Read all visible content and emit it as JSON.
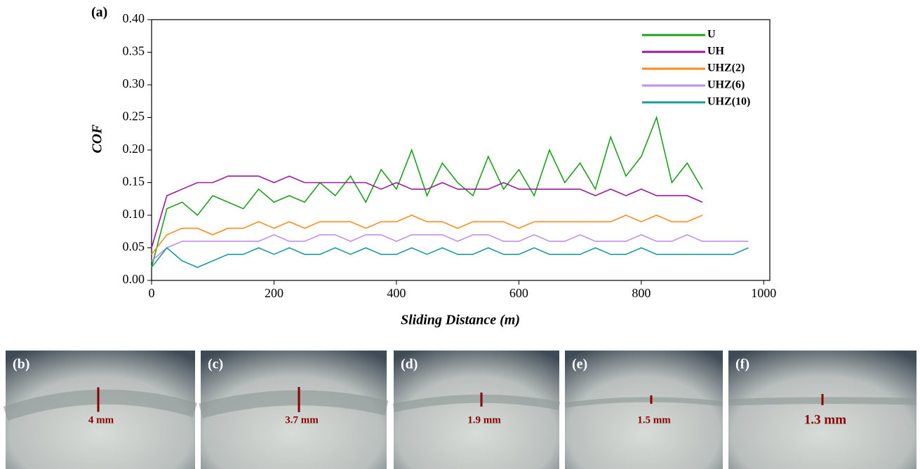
{
  "chart_data": {
    "type": "line",
    "annotation": "(a)",
    "x_label": "Sliding Distance (m)",
    "y_label": "COF",
    "x": [
      0,
      25,
      50,
      75,
      100,
      125,
      150,
      175,
      200,
      225,
      250,
      275,
      300,
      325,
      350,
      375,
      400,
      425,
      450,
      475,
      500,
      525,
      550,
      575,
      600,
      625,
      650,
      675,
      700,
      725,
      750,
      775,
      800,
      825,
      850,
      875,
      900,
      925,
      950,
      975
    ],
    "series": [
      {
        "name": "U",
        "color": "#1ca01c",
        "values": [
          0.02,
          0.11,
          0.12,
          0.1,
          0.13,
          0.12,
          0.11,
          0.14,
          0.12,
          0.13,
          0.12,
          0.15,
          0.13,
          0.16,
          0.12,
          0.17,
          0.14,
          0.2,
          0.13,
          0.18,
          0.15,
          0.13,
          0.19,
          0.14,
          0.17,
          0.13,
          0.2,
          0.15,
          0.18,
          0.14,
          0.22,
          0.16,
          0.19,
          0.25,
          0.15,
          0.18,
          0.14,
          null,
          null,
          null
        ]
      },
      {
        "name": "UH",
        "color": "#9b1a9b",
        "values": [
          0.05,
          0.13,
          0.14,
          0.15,
          0.15,
          0.16,
          0.16,
          0.16,
          0.15,
          0.16,
          0.15,
          0.15,
          0.15,
          0.15,
          0.15,
          0.14,
          0.15,
          0.14,
          0.14,
          0.15,
          0.14,
          0.14,
          0.14,
          0.15,
          0.14,
          0.14,
          0.14,
          0.14,
          0.14,
          0.13,
          0.14,
          0.13,
          0.14,
          0.13,
          0.13,
          0.13,
          0.12,
          null,
          null,
          null
        ]
      },
      {
        "name": "UHZ(2)",
        "color": "#ff8a1a",
        "values": [
          0.04,
          0.07,
          0.08,
          0.08,
          0.07,
          0.08,
          0.08,
          0.09,
          0.08,
          0.09,
          0.08,
          0.09,
          0.09,
          0.09,
          0.08,
          0.09,
          0.09,
          0.1,
          0.09,
          0.09,
          0.08,
          0.09,
          0.09,
          0.09,
          0.08,
          0.09,
          0.09,
          0.09,
          0.09,
          0.09,
          0.09,
          0.1,
          0.09,
          0.1,
          0.09,
          0.09,
          0.1,
          null,
          null,
          null
        ]
      },
      {
        "name": "UHZ(6)",
        "color": "#c28ff0",
        "values": [
          0.03,
          0.05,
          0.06,
          0.06,
          0.06,
          0.06,
          0.06,
          0.06,
          0.07,
          0.06,
          0.06,
          0.07,
          0.07,
          0.06,
          0.07,
          0.07,
          0.06,
          0.07,
          0.07,
          0.07,
          0.06,
          0.07,
          0.07,
          0.06,
          0.06,
          0.07,
          0.06,
          0.06,
          0.07,
          0.06,
          0.06,
          0.06,
          0.07,
          0.06,
          0.06,
          0.07,
          0.06,
          0.06,
          0.06,
          0.06
        ]
      },
      {
        "name": "UHZ(10)",
        "color": "#1a9a9a",
        "values": [
          0.02,
          0.05,
          0.03,
          0.02,
          0.03,
          0.04,
          0.04,
          0.05,
          0.04,
          0.05,
          0.04,
          0.04,
          0.05,
          0.04,
          0.05,
          0.04,
          0.04,
          0.05,
          0.04,
          0.05,
          0.04,
          0.04,
          0.05,
          0.04,
          0.04,
          0.05,
          0.04,
          0.04,
          0.04,
          0.05,
          0.04,
          0.04,
          0.05,
          0.04,
          0.04,
          0.04,
          0.04,
          0.04,
          0.04,
          0.05
        ]
      }
    ],
    "xlim": [
      0,
      1010
    ],
    "xticks": [
      0,
      200,
      400,
      600,
      800,
      1000
    ],
    "ylim": [
      0,
      0.4
    ],
    "yticks": [
      {
        "value": 0,
        "label": "0.00"
      },
      {
        "value": 0.05,
        "label": "0.05"
      },
      {
        "value": 0.1,
        "label": "0.10"
      },
      {
        "value": 0.15,
        "label": "0.15"
      },
      {
        "value": 0.2,
        "label": "0.20"
      },
      {
        "value": 0.25,
        "label": "0.25"
      },
      {
        "value": 0.3,
        "label": "0.30"
      },
      {
        "value": 0.35,
        "label": "0.35"
      },
      {
        "value": 0.4,
        "label": "0.40"
      }
    ],
    "legend": "upper right",
    "grid": false
  },
  "panels": [
    {
      "label": "(b)",
      "scale": "4 mm"
    },
    {
      "label": "(c)",
      "scale": "3.7 mm"
    },
    {
      "label": "(d)",
      "scale": "1.9 mm"
    },
    {
      "label": "(e)",
      "scale": "1.5 mm"
    },
    {
      "label": "(f)",
      "scale": "1.3 mm"
    }
  ]
}
